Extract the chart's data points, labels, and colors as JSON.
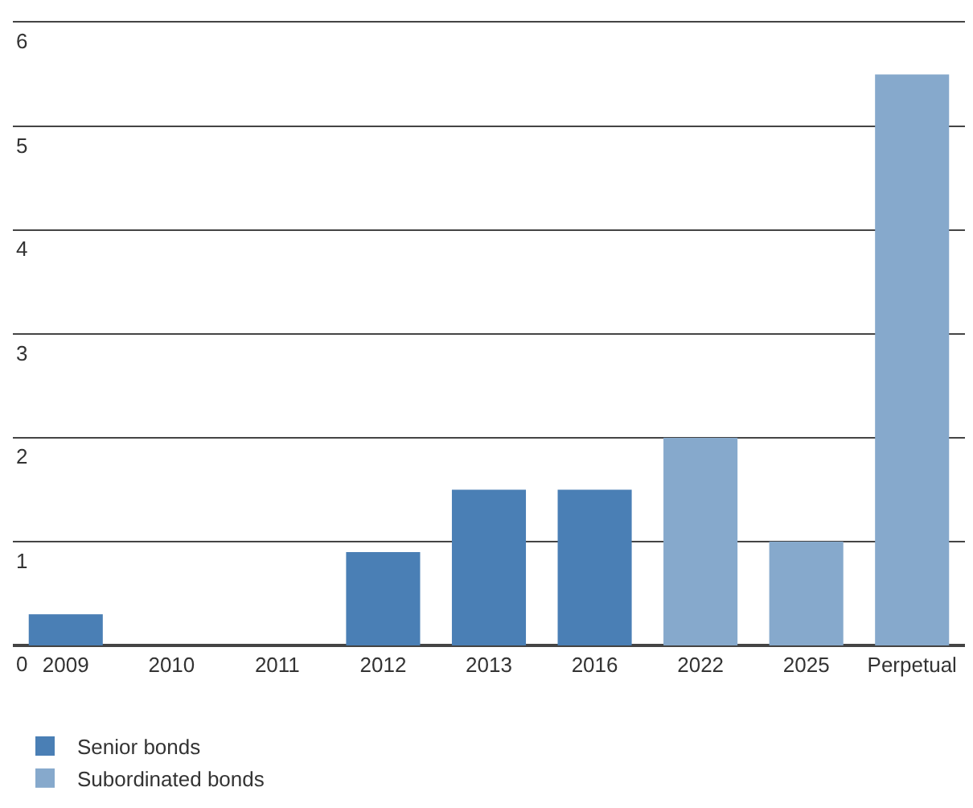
{
  "chart_data": {
    "type": "bar",
    "stacked": true,
    "categories": [
      "2009",
      "2010",
      "2011",
      "2012",
      "2013",
      "2016",
      "2022",
      "2025",
      "Perpetual"
    ],
    "series": [
      {
        "name": "Senior bonds",
        "color": "#4a7fb5",
        "values": [
          0.3,
          0,
          0,
          0.9,
          1.5,
          1.5,
          null,
          null,
          null
        ]
      },
      {
        "name": "Subordinated bonds",
        "color": "#86a9cc",
        "values": [
          null,
          null,
          null,
          null,
          null,
          null,
          2.0,
          1.0,
          5.5
        ]
      }
    ],
    "ylim": [
      0,
      6
    ],
    "yticks": [
      0,
      1,
      2,
      3,
      4,
      5,
      6
    ],
    "grid": "y",
    "legend": "bottom left"
  }
}
